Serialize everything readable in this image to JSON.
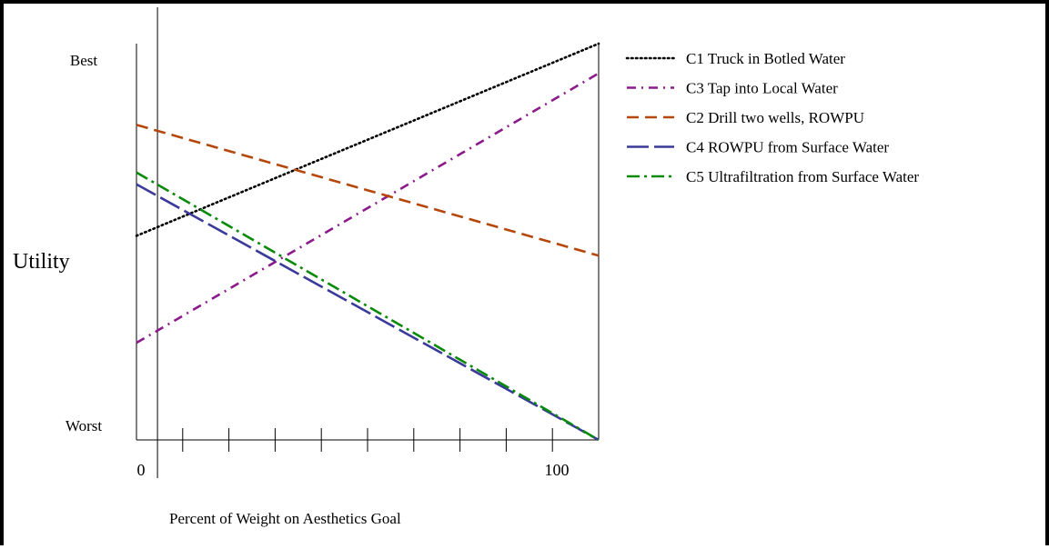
{
  "chart_data": {
    "type": "line",
    "title": "",
    "xlabel": "Percent of Weight on Aesthetics Goal",
    "ylabel": "Utility",
    "xlim": [
      0,
      110
    ],
    "ylim": [
      0,
      1
    ],
    "x_tick_labels": [
      "0",
      "100"
    ],
    "y_tick_labels": {
      "top": "Best",
      "bottom": "Worst"
    },
    "x_tick_count": 11,
    "legend_position": "top-right",
    "reference_line_x": 5,
    "series": [
      {
        "name": "C1  Truck in Botled Water",
        "x": [
          0,
          110
        ],
        "y": [
          0.515,
          1.0
        ],
        "color": "#000000",
        "dash": "dotted"
      },
      {
        "name": "C3  Tap into Local Water",
        "x": [
          0,
          110
        ],
        "y": [
          0.245,
          0.925
        ],
        "color": "#8b1a8b",
        "dash": "dashdot"
      },
      {
        "name": "C2 Drill two wells, ROWPU",
        "x": [
          0,
          110
        ],
        "y": [
          0.795,
          0.465
        ],
        "color": "#b5470b",
        "dash": "dashed"
      },
      {
        "name": "C4 ROWPU from Surface Water",
        "x": [
          0,
          110
        ],
        "y": [
          0.645,
          0.0
        ],
        "color": "#3a3a9a",
        "dash": "longdash"
      },
      {
        "name": "C5 Ultrafiltration from Surface Water",
        "x": [
          0,
          110
        ],
        "y": [
          0.675,
          0.0
        ],
        "color": "#0a8a0a",
        "dash": "dashdot2"
      }
    ]
  }
}
